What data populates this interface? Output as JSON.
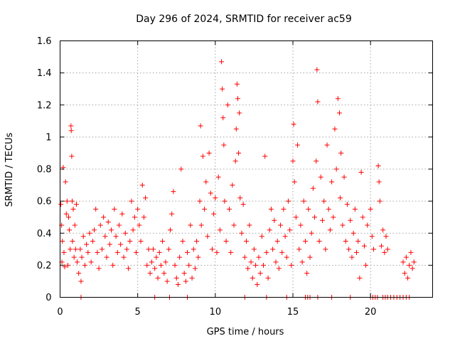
{
  "chart_data": {
    "type": "scatter",
    "title": "Day 296 of 2024, SRMTID for receiver ac59",
    "xlabel": "GPS time / hours",
    "ylabel": "SRMTID / TECUs",
    "xlim": [
      0,
      24
    ],
    "ylim": [
      0,
      1.6
    ],
    "x_ticks": [
      0,
      5,
      10,
      15,
      20
    ],
    "x_tick_labels": [
      "0",
      "5",
      "10",
      "15",
      "20"
    ],
    "y_ticks": [
      0,
      0.2,
      0.4,
      0.6,
      0.8,
      1,
      1.2,
      1.4,
      1.6
    ],
    "y_tick_labels": [
      "0",
      "0.2",
      "0.4",
      "0.6",
      "0.8",
      "1",
      "1.2",
      "1.4",
      "1.6"
    ],
    "grid": true,
    "marker": "+",
    "marker_color": "#ff0000",
    "series": [
      {
        "name": "SRMTID",
        "points": [
          [
            0.05,
            0.58
          ],
          [
            0.1,
            0.45
          ],
          [
            0.12,
            0.22
          ],
          [
            0.15,
            0.35
          ],
          [
            0.2,
            0.81
          ],
          [
            0.25,
            0.28
          ],
          [
            0.3,
            0.19
          ],
          [
            0.35,
            0.72
          ],
          [
            0.4,
            0.52
          ],
          [
            0.45,
            0.6
          ],
          [
            0.5,
            0.2
          ],
          [
            0.55,
            0.5
          ],
          [
            0.6,
            0.42
          ],
          [
            0.65,
            0.3
          ],
          [
            0.7,
            1.07
          ],
          [
            0.72,
            1.04
          ],
          [
            0.75,
            0.88
          ],
          [
            0.78,
            0.6
          ],
          [
            0.8,
            0.35
          ],
          [
            0.85,
            0.55
          ],
          [
            0.9,
            0.25
          ],
          [
            0.95,
            0.45
          ],
          [
            1.0,
            0.3
          ],
          [
            1.05,
            0.58
          ],
          [
            1.1,
            0.22
          ],
          [
            1.2,
            0.15
          ],
          [
            1.3,
            0.3
          ],
          [
            1.35,
            0.1
          ],
          [
            1.4,
            0.25
          ],
          [
            1.5,
            0.38
          ],
          [
            1.6,
            0.2
          ],
          [
            1.7,
            0.33
          ],
          [
            1.8,
            0.28
          ],
          [
            1.9,
            0.4
          ],
          [
            2.0,
            0.22
          ],
          [
            2.1,
            0.35
          ],
          [
            2.2,
            0.42
          ],
          [
            2.3,
            0.55
          ],
          [
            2.4,
            0.28
          ],
          [
            2.5,
            0.18
          ],
          [
            2.6,
            0.45
          ],
          [
            2.7,
            0.3
          ],
          [
            2.8,
            0.5
          ],
          [
            2.9,
            0.38
          ],
          [
            3.0,
            0.25
          ],
          [
            3.1,
            0.47
          ],
          [
            3.2,
            0.33
          ],
          [
            3.3,
            0.42
          ],
          [
            3.4,
            0.2
          ],
          [
            3.5,
            0.55
          ],
          [
            3.6,
            0.38
          ],
          [
            3.7,
            0.28
          ],
          [
            3.8,
            0.45
          ],
          [
            3.9,
            0.33
          ],
          [
            4.0,
            0.52
          ],
          [
            4.1,
            0.25
          ],
          [
            4.2,
            0.4
          ],
          [
            4.3,
            0.3
          ],
          [
            4.4,
            0.18
          ],
          [
            4.5,
            0.35
          ],
          [
            4.6,
            0.6
          ],
          [
            4.7,
            0.42
          ],
          [
            4.8,
            0.5
          ],
          [
            4.9,
            0.28
          ],
          [
            5.0,
            0.55
          ],
          [
            5.1,
            0.45
          ],
          [
            5.2,
            0.35
          ],
          [
            5.3,
            0.7
          ],
          [
            5.4,
            0.5
          ],
          [
            5.5,
            0.62
          ],
          [
            5.6,
            0.2
          ],
          [
            5.7,
            0.3
          ],
          [
            5.8,
            0.15
          ],
          [
            5.9,
            0.22
          ],
          [
            6.0,
            0.3
          ],
          [
            6.1,
            0.18
          ],
          [
            6.2,
            0.25
          ],
          [
            6.3,
            0.12
          ],
          [
            6.4,
            0.28
          ],
          [
            6.5,
            0.2
          ],
          [
            6.6,
            0.35
          ],
          [
            6.7,
            0.15
          ],
          [
            6.8,
            0.22
          ],
          [
            6.9,
            0.1
          ],
          [
            7.0,
            0.3
          ],
          [
            7.1,
            0.42
          ],
          [
            7.2,
            0.52
          ],
          [
            7.3,
            0.66
          ],
          [
            7.4,
            0.2
          ],
          [
            7.5,
            0.12
          ],
          [
            7.6,
            0.08
          ],
          [
            7.7,
            0.25
          ],
          [
            7.8,
            0.8
          ],
          [
            7.9,
            0.35
          ],
          [
            8.0,
            0.15
          ],
          [
            8.1,
            0.1
          ],
          [
            8.2,
            0.28
          ],
          [
            8.3,
            0.2
          ],
          [
            8.4,
            0.45
          ],
          [
            8.5,
            0.12
          ],
          [
            8.6,
            0.3
          ],
          [
            8.7,
            0.18
          ],
          [
            8.8,
            0.35
          ],
          [
            8.9,
            0.25
          ],
          [
            9.0,
            0.6
          ],
          [
            9.05,
            1.07
          ],
          [
            9.1,
            0.45
          ],
          [
            9.2,
            0.88
          ],
          [
            9.3,
            0.55
          ],
          [
            9.4,
            0.72
          ],
          [
            9.5,
            0.38
          ],
          [
            9.6,
            0.9
          ],
          [
            9.7,
            0.65
          ],
          [
            9.8,
            0.3
          ],
          [
            9.9,
            0.52
          ],
          [
            10.0,
            0.62
          ],
          [
            10.1,
            0.28
          ],
          [
            10.2,
            0.75
          ],
          [
            10.3,
            0.42
          ],
          [
            10.4,
            1.47
          ],
          [
            10.45,
            1.3
          ],
          [
            10.5,
            1.12
          ],
          [
            10.55,
            0.95
          ],
          [
            10.6,
            0.6
          ],
          [
            10.7,
            0.35
          ],
          [
            10.8,
            1.2
          ],
          [
            10.9,
            0.55
          ],
          [
            11.0,
            0.28
          ],
          [
            11.1,
            0.7
          ],
          [
            11.2,
            0.45
          ],
          [
            11.3,
            0.85
          ],
          [
            11.35,
            1.05
          ],
          [
            11.4,
            1.33
          ],
          [
            11.45,
            1.24
          ],
          [
            11.5,
            0.9
          ],
          [
            11.55,
            1.15
          ],
          [
            11.6,
            0.62
          ],
          [
            11.7,
            0.4
          ],
          [
            11.8,
            0.58
          ],
          [
            11.9,
            0.25
          ],
          [
            12.0,
            0.35
          ],
          [
            12.1,
            0.18
          ],
          [
            12.2,
            0.45
          ],
          [
            12.3,
            0.22
          ],
          [
            12.4,
            0.12
          ],
          [
            12.5,
            0.3
          ],
          [
            12.6,
            0.2
          ],
          [
            12.7,
            0.08
          ],
          [
            12.8,
            0.25
          ],
          [
            12.9,
            0.15
          ],
          [
            13.0,
            0.38
          ],
          [
            13.1,
            0.2
          ],
          [
            13.2,
            0.88
          ],
          [
            13.3,
            0.28
          ],
          [
            13.4,
            0.12
          ],
          [
            13.5,
            0.42
          ],
          [
            13.6,
            0.55
          ],
          [
            13.7,
            0.3
          ],
          [
            13.8,
            0.48
          ],
          [
            13.9,
            0.22
          ],
          [
            14.0,
            0.35
          ],
          [
            14.1,
            0.18
          ],
          [
            14.2,
            0.45
          ],
          [
            14.3,
            0.28
          ],
          [
            14.4,
            0.55
          ],
          [
            14.5,
            0.38
          ],
          [
            14.6,
            0.25
          ],
          [
            14.7,
            0.6
          ],
          [
            14.8,
            0.42
          ],
          [
            14.9,
            0.2
          ],
          [
            15.0,
            0.85
          ],
          [
            15.05,
            1.08
          ],
          [
            15.1,
            0.72
          ],
          [
            15.2,
            0.5
          ],
          [
            15.3,
            0.95
          ],
          [
            15.4,
            0.3
          ],
          [
            15.5,
            0.45
          ],
          [
            15.6,
            0.22
          ],
          [
            15.7,
            0.6
          ],
          [
            15.8,
            0.35
          ],
          [
            15.9,
            0.15
          ],
          [
            16.0,
            0.55
          ],
          [
            16.1,
            0.25
          ],
          [
            16.2,
            0.4
          ],
          [
            16.3,
            0.68
          ],
          [
            16.4,
            0.5
          ],
          [
            16.5,
            0.85
          ],
          [
            16.55,
            1.42
          ],
          [
            16.6,
            1.22
          ],
          [
            16.7,
            0.35
          ],
          [
            16.8,
            0.75
          ],
          [
            16.9,
            0.48
          ],
          [
            17.0,
            0.6
          ],
          [
            17.1,
            0.3
          ],
          [
            17.2,
            0.95
          ],
          [
            17.3,
            0.55
          ],
          [
            17.4,
            0.42
          ],
          [
            17.5,
            0.72
          ],
          [
            17.6,
            0.5
          ],
          [
            17.7,
            1.05
          ],
          [
            17.8,
            0.8
          ],
          [
            17.9,
            1.24
          ],
          [
            18.0,
            1.15
          ],
          [
            18.05,
            0.62
          ],
          [
            18.1,
            0.9
          ],
          [
            18.2,
            0.45
          ],
          [
            18.3,
            0.75
          ],
          [
            18.4,
            0.35
          ],
          [
            18.5,
            0.58
          ],
          [
            18.6,
            0.3
          ],
          [
            18.7,
            0.48
          ],
          [
            18.8,
            0.25
          ],
          [
            18.9,
            0.4
          ],
          [
            19.0,
            0.55
          ],
          [
            19.1,
            0.28
          ],
          [
            19.2,
            0.35
          ],
          [
            19.3,
            0.12
          ],
          [
            19.4,
            0.78
          ],
          [
            19.5,
            0.5
          ],
          [
            19.6,
            0.32
          ],
          [
            19.7,
            0.2
          ],
          [
            19.8,
            0.45
          ],
          [
            20.0,
            0.55
          ],
          [
            20.1,
            0.38
          ],
          [
            20.2,
            0.3
          ],
          [
            20.5,
            0.82
          ],
          [
            20.55,
            0.72
          ],
          [
            20.6,
            0.6
          ],
          [
            20.7,
            0.32
          ],
          [
            20.8,
            0.42
          ],
          [
            20.9,
            0.28
          ],
          [
            21.0,
            0.38
          ],
          [
            21.1,
            0.3
          ],
          [
            22.1,
            0.22
          ],
          [
            22.2,
            0.15
          ],
          [
            22.3,
            0.25
          ],
          [
            22.4,
            0.12
          ],
          [
            22.5,
            0.2
          ],
          [
            22.6,
            0.28
          ],
          [
            22.7,
            0.18
          ],
          [
            22.8,
            0.22
          ],
          [
            1.35,
            0.0
          ],
          [
            6.1,
            0.0
          ],
          [
            7.05,
            0.0
          ],
          [
            8.2,
            0.0
          ],
          [
            11.9,
            0.0
          ],
          [
            13.3,
            0.0
          ],
          [
            14.6,
            0.0
          ],
          [
            15.8,
            0.0
          ],
          [
            15.95,
            0.0
          ],
          [
            16.1,
            0.0
          ],
          [
            16.6,
            0.0
          ],
          [
            17.5,
            0.0
          ],
          [
            18.7,
            0.0
          ],
          [
            20.0,
            0.0
          ],
          [
            20.15,
            0.0
          ],
          [
            20.3,
            0.0
          ],
          [
            20.45,
            0.0
          ],
          [
            20.8,
            0.0
          ],
          [
            20.95,
            0.0
          ],
          [
            21.1,
            0.0
          ],
          [
            21.3,
            0.0
          ],
          [
            21.5,
            0.0
          ],
          [
            21.7,
            0.0
          ],
          [
            21.9,
            0.0
          ],
          [
            22.1,
            0.0
          ],
          [
            22.3,
            0.0
          ],
          [
            22.5,
            0.0
          ]
        ]
      }
    ]
  }
}
